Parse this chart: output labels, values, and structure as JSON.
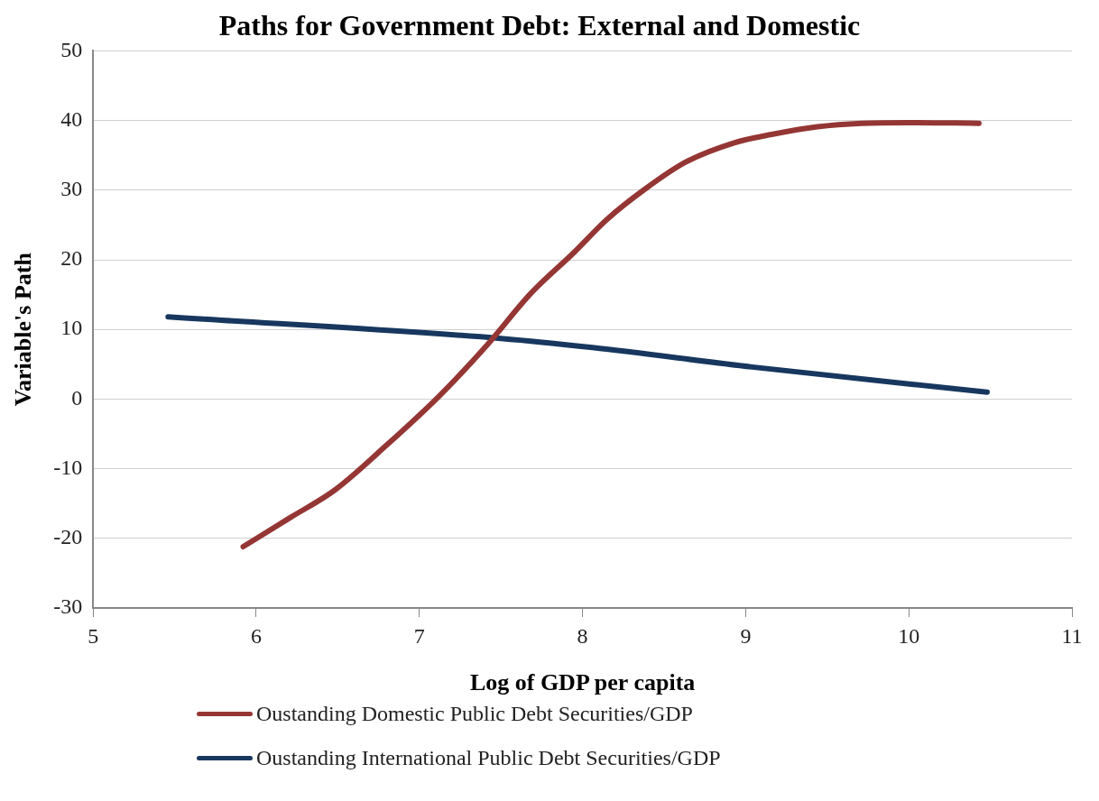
{
  "chart_data": {
    "type": "line",
    "title": "Paths for Government Debt: External and Domestic",
    "xlabel": "Log of GDP per capita",
    "ylabel": "Variable's Path",
    "xlim": [
      5,
      11
    ],
    "xticks": [
      5,
      6,
      7,
      8,
      9,
      10,
      11
    ],
    "ylim": [
      -30,
      50
    ],
    "yticks": [
      -30,
      -20,
      -10,
      0,
      10,
      20,
      30,
      40,
      50
    ],
    "grid": "y",
    "legend": "bottom",
    "marker": "none",
    "line_style": "solid",
    "series": [
      {
        "name": "Oustanding Domestic Public Debt Securities/GDP",
        "color": "#943634",
        "x": [
          5.92,
          6.21,
          6.48,
          6.8,
          7.12,
          7.42,
          7.68,
          7.95,
          8.15,
          8.38,
          8.63,
          8.93,
          9.16,
          9.44,
          9.71,
          10.0,
          10.43
        ],
        "values": [
          -21.2,
          -17.0,
          -13.1,
          -6.6,
          0.4,
          7.9,
          15.1,
          21.1,
          25.8,
          30.1,
          34.0,
          36.8,
          38.0,
          39.1,
          39.6,
          39.7,
          39.6
        ]
      },
      {
        "name": "Oustanding International Public Debt Securities/GDP",
        "color": "#17375e",
        "x": [
          5.46,
          7.5,
          8.06,
          9.04,
          10.48
        ],
        "values": [
          11.8,
          8.7,
          7.4,
          4.6,
          1.0
        ]
      }
    ]
  }
}
